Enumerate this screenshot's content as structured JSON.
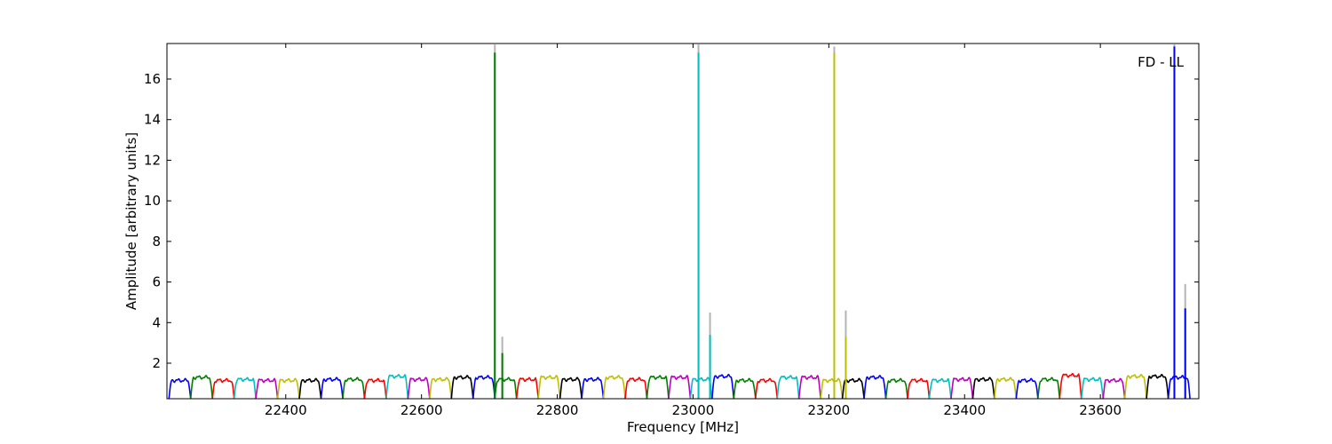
{
  "chart_data": {
    "type": "line",
    "title": "",
    "annotation": "FD - LL",
    "xlabel": "Frequency [MHz]",
    "ylabel": "Amplitude [arbitrary units]",
    "xlim": [
      22225,
      23745
    ],
    "ylim": [
      0.25,
      17.75
    ],
    "xticks": [
      22400,
      22600,
      22800,
      23000,
      23200,
      23400,
      23600
    ],
    "yticks": [
      2,
      4,
      6,
      8,
      10,
      12,
      14,
      16
    ],
    "grid": false,
    "legend": "none",
    "colors": [
      "#0000ff",
      "#008000",
      "#ff0000",
      "#00bfbf",
      "#bf00bf",
      "#bfbf00",
      "#000000"
    ],
    "band_width_mhz": 32,
    "bands": [
      {
        "start": 22228,
        "level": 1.15,
        "color": "#0000ff"
      },
      {
        "start": 22260,
        "level": 1.3,
        "color": "#008000"
      },
      {
        "start": 22292,
        "level": 1.15,
        "color": "#ff0000"
      },
      {
        "start": 22324,
        "level": 1.2,
        "color": "#00bfbf"
      },
      {
        "start": 22356,
        "level": 1.15,
        "color": "#bf00bf"
      },
      {
        "start": 22388,
        "level": 1.15,
        "color": "#bfbf00"
      },
      {
        "start": 22420,
        "level": 1.15,
        "color": "#000000"
      },
      {
        "start": 22452,
        "level": 1.2,
        "color": "#0000ff"
      },
      {
        "start": 22484,
        "level": 1.2,
        "color": "#008000"
      },
      {
        "start": 22516,
        "level": 1.15,
        "color": "#ff0000"
      },
      {
        "start": 22548,
        "level": 1.35,
        "color": "#00bfbf"
      },
      {
        "start": 22580,
        "level": 1.2,
        "color": "#bf00bf"
      },
      {
        "start": 22612,
        "level": 1.2,
        "color": "#bfbf00"
      },
      {
        "start": 22644,
        "level": 1.3,
        "color": "#000000"
      },
      {
        "start": 22676,
        "level": 1.3,
        "color": "#0000ff"
      },
      {
        "start": 22708,
        "level": 1.2,
        "color": "#008000"
      },
      {
        "start": 22740,
        "level": 1.2,
        "color": "#ff0000"
      },
      {
        "start": 22772,
        "level": 1.3,
        "color": "#bfbf00"
      },
      {
        "start": 22804,
        "level": 1.2,
        "color": "#000000"
      },
      {
        "start": 22836,
        "level": 1.2,
        "color": "#0000ff"
      },
      {
        "start": 22868,
        "level": 1.3,
        "color": "#bfbf00"
      },
      {
        "start": 22900,
        "level": 1.2,
        "color": "#ff0000"
      },
      {
        "start": 22932,
        "level": 1.3,
        "color": "#008000"
      },
      {
        "start": 22964,
        "level": 1.3,
        "color": "#bf00bf"
      },
      {
        "start": 22996,
        "level": 1.2,
        "color": "#00bfbf"
      },
      {
        "start": 23028,
        "level": 1.35,
        "color": "#0000ff"
      },
      {
        "start": 23060,
        "level": 1.15,
        "color": "#008000"
      },
      {
        "start": 23092,
        "level": 1.15,
        "color": "#ff0000"
      },
      {
        "start": 23124,
        "level": 1.3,
        "color": "#00bfbf"
      },
      {
        "start": 23156,
        "level": 1.3,
        "color": "#bf00bf"
      },
      {
        "start": 23188,
        "level": 1.15,
        "color": "#bfbf00"
      },
      {
        "start": 23220,
        "level": 1.15,
        "color": "#000000"
      },
      {
        "start": 23252,
        "level": 1.3,
        "color": "#0000ff"
      },
      {
        "start": 23284,
        "level": 1.15,
        "color": "#008000"
      },
      {
        "start": 23316,
        "level": 1.15,
        "color": "#ff0000"
      },
      {
        "start": 23348,
        "level": 1.15,
        "color": "#00bfbf"
      },
      {
        "start": 23380,
        "level": 1.2,
        "color": "#bf00bf"
      },
      {
        "start": 23412,
        "level": 1.2,
        "color": "#000000"
      },
      {
        "start": 23444,
        "level": 1.2,
        "color": "#bfbf00"
      },
      {
        "start": 23476,
        "level": 1.15,
        "color": "#0000ff"
      },
      {
        "start": 23508,
        "level": 1.2,
        "color": "#008000"
      },
      {
        "start": 23540,
        "level": 1.4,
        "color": "#ff0000"
      },
      {
        "start": 23572,
        "level": 1.2,
        "color": "#00bfbf"
      },
      {
        "start": 23604,
        "level": 1.15,
        "color": "#bf00bf"
      },
      {
        "start": 23636,
        "level": 1.35,
        "color": "#bfbf00"
      },
      {
        "start": 23668,
        "level": 1.35,
        "color": "#000000"
      },
      {
        "start": 23700,
        "level": 1.3,
        "color": "#0000ff"
      }
    ],
    "spikes": [
      {
        "freq": 22708,
        "value": 17.3,
        "gray": 17.7,
        "color": "#008000"
      },
      {
        "freq": 22719,
        "value": 2.5,
        "gray": 3.3,
        "color": "#008000"
      },
      {
        "freq": 23008,
        "value": 17.3,
        "gray": 17.7,
        "color": "#00bfbf"
      },
      {
        "freq": 23025,
        "value": 3.4,
        "gray": 4.5,
        "color": "#00bfbf"
      },
      {
        "freq": 23208,
        "value": 17.3,
        "gray": 17.6,
        "color": "#bfbf00"
      },
      {
        "freq": 23225,
        "value": 3.3,
        "gray": 4.6,
        "color": "#bfbf00"
      },
      {
        "freq": 23709,
        "value": 17.6,
        "gray": 17.7,
        "color": "#0000ff"
      },
      {
        "freq": 23725,
        "value": 4.7,
        "gray": 5.9,
        "color": "#0000ff"
      }
    ]
  }
}
